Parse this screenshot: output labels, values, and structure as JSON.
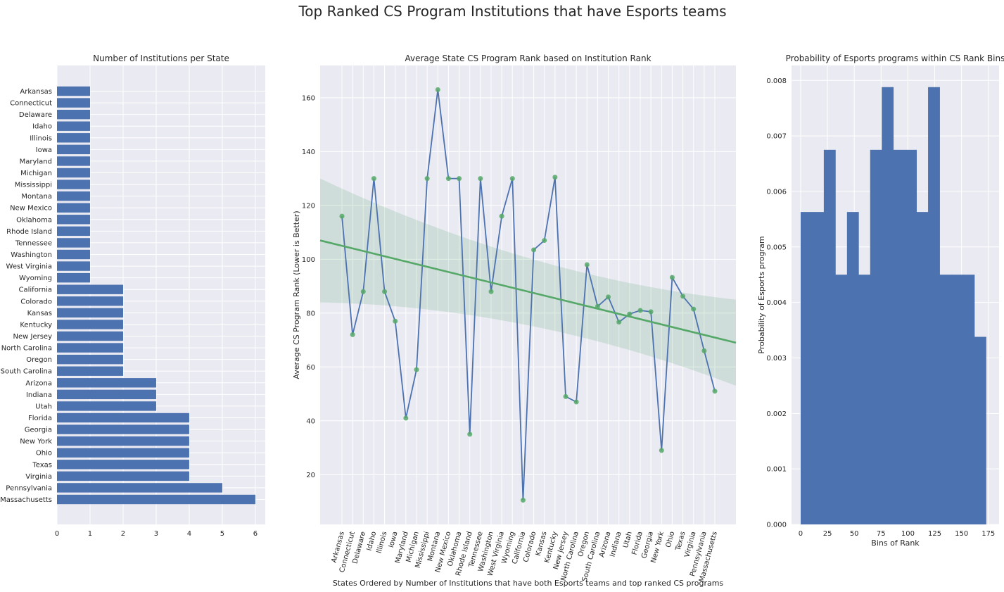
{
  "suptitle": "Top Ranked CS Program Institutions that have Esports teams",
  "colors": {
    "bar": "#4c72b0",
    "line": "#4c72b0",
    "marker": "#55a868",
    "trend": "#55a868",
    "band": "#55a868",
    "panel": "#eaeaf2",
    "grid": "#ffffff"
  },
  "chart_data": [
    {
      "type": "bar",
      "orientation": "horizontal",
      "title": "Number of Institutions per State",
      "xlabel": "",
      "ylabel": "",
      "categories": [
        "Arkansas",
        "Connecticut",
        "Delaware",
        "Idaho",
        "Illinois",
        "Iowa",
        "Maryland",
        "Michigan",
        "Mississippi",
        "Montana",
        "New Mexico",
        "Oklahoma",
        "Rhode Island",
        "Tennessee",
        "Washington",
        "West Virginia",
        "Wyoming",
        "California",
        "Colorado",
        "Kansas",
        "Kentucky",
        "New Jersey",
        "North Carolina",
        "Oregon",
        "South Carolina",
        "Arizona",
        "Indiana",
        "Utah",
        "Florida",
        "Georgia",
        "New York",
        "Ohio",
        "Texas",
        "Virginia",
        "Pennsylvania",
        "Massachusetts"
      ],
      "values": [
        1,
        1,
        1,
        1,
        1,
        1,
        1,
        1,
        1,
        1,
        1,
        1,
        1,
        1,
        1,
        1,
        1,
        2,
        2,
        2,
        2,
        2,
        2,
        2,
        2,
        3,
        3,
        3,
        4,
        4,
        4,
        4,
        4,
        4,
        5,
        6
      ],
      "xlim": [
        0,
        6.3
      ],
      "xticks": [
        0,
        1,
        2,
        3,
        4,
        5,
        6
      ],
      "grid": true
    },
    {
      "type": "line",
      "title": "Average State CS Program Rank based on Institution Rank",
      "xlabel": "States Ordered by Number of Institutions that have both Esports teams and top ranked CS programs",
      "ylabel": "Average CS Program Rank (Lower is Better)",
      "categories": [
        "Arkansas",
        "Connecticut",
        "Delaware",
        "Idaho",
        "Illinois",
        "Iowa",
        "Maryland",
        "Michigan",
        "Mississippi",
        "Montana",
        "New Mexico",
        "Oklahoma",
        "Rhode Island",
        "Tennessee",
        "Washington",
        "West Virginia",
        "Wyoming",
        "California",
        "Colorado",
        "Kansas",
        "Kentucky",
        "New Jersey",
        "North Carolina",
        "Oregon",
        "South Carolina",
        "Arizona",
        "Indiana",
        "Utah",
        "Florida",
        "Georgia",
        "New York",
        "Ohio",
        "Texas",
        "Virginia",
        "Pennsylvania",
        "Massachusetts"
      ],
      "values": [
        116,
        72,
        88,
        130,
        88,
        77,
        41,
        59,
        130,
        163,
        130,
        130,
        35,
        130,
        88,
        116,
        130,
        10.5,
        103.5,
        107,
        130.5,
        49,
        47,
        98,
        82.5,
        86,
        76.67,
        79.67,
        81,
        80.5,
        29,
        93.25,
        86.25,
        81.5,
        66,
        51
      ],
      "trend": {
        "start": 107,
        "end": 69,
        "ci_lower_start": 84,
        "ci_upper_start": 130,
        "ci_lower_end": 53,
        "ci_upper_end": 85
      },
      "ylim": [
        1.5,
        172
      ],
      "yticks": [
        20,
        40,
        60,
        80,
        100,
        120,
        140,
        160
      ],
      "grid": true
    },
    {
      "type": "bar",
      "subtype": "histogram",
      "title": "Probability of Esports programs within CS Rank Bins",
      "xlabel": "Bins of Rank",
      "ylabel": "Probability of Esports program",
      "bin_start": 0,
      "bin_width": 10.8,
      "values": [
        0.00563,
        0.00563,
        0.00675,
        0.0045,
        0.00563,
        0.0045,
        0.00675,
        0.00788,
        0.00675,
        0.00675,
        0.00563,
        0.00788,
        0.0045,
        0.0045,
        0.0045,
        0.00338
      ],
      "xlim": [
        -8.5,
        185
      ],
      "ylim": [
        0,
        0.00827
      ],
      "xticks": [
        0,
        25,
        50,
        75,
        100,
        125,
        150,
        175
      ],
      "yticks": [
        "0.000",
        "0.001",
        "0.002",
        "0.003",
        "0.004",
        "0.005",
        "0.006",
        "0.007",
        "0.008"
      ],
      "grid": true
    }
  ]
}
